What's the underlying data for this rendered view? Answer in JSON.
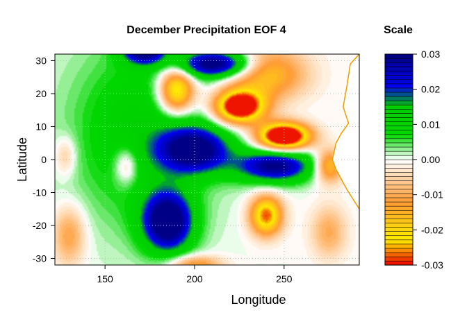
{
  "chart_data": {
    "type": "heatmap",
    "title": "December Precipitation EOF 4",
    "xlabel": "Longitude",
    "ylabel": "Latitude",
    "xlim": [
      122,
      292
    ],
    "ylim": [
      -32,
      32
    ],
    "x_ticks": [
      150,
      200,
      250
    ],
    "y_ticks": [
      30,
      20,
      10,
      0,
      -10,
      -20,
      -30
    ],
    "grid": true,
    "grid_style": "dotted",
    "land_mask_color": "#ffffff",
    "coastline_color": "#e8a000",
    "field_features": [
      {
        "lon": 200,
        "lat": 3,
        "sx": 20,
        "sy": 7,
        "value": 0.03
      },
      {
        "lon": 245,
        "lat": -2,
        "sx": 22,
        "sy": 5,
        "value": 0.03
      },
      {
        "lon": 185,
        "lat": -19,
        "sx": 14,
        "sy": 9,
        "value": 0.035
      },
      {
        "lon": 212,
        "lat": 29,
        "sx": 20,
        "sy": 4,
        "value": 0.032
      },
      {
        "lon": 172,
        "lat": 33,
        "sx": 12,
        "sy": 4,
        "value": 0.03
      },
      {
        "lon": 170,
        "lat": 8,
        "sx": 40,
        "sy": 28,
        "value": 0.012
      },
      {
        "lon": 190,
        "lat": 21,
        "sx": 10,
        "sy": 7,
        "value": -0.03
      },
      {
        "lon": 240,
        "lat": -17,
        "sx": 9,
        "sy": 6,
        "value": -0.028
      },
      {
        "lon": 225,
        "lat": 16,
        "sx": 14,
        "sy": 5,
        "value": -0.04
      },
      {
        "lon": 250,
        "lat": 7,
        "sx": 14,
        "sy": 4,
        "value": -0.045
      },
      {
        "lon": 275,
        "lat": -2,
        "sx": 8,
        "sy": 5,
        "value": -0.02
      },
      {
        "lon": 162,
        "lat": -2,
        "sx": 7,
        "sy": 6,
        "value": -0.012
      },
      {
        "lon": 130,
        "lat": -23,
        "sx": 9,
        "sy": 9,
        "value": -0.012
      },
      {
        "lon": 128,
        "lat": 1,
        "sx": 6,
        "sy": 6,
        "value": -0.008
      },
      {
        "lon": 275,
        "lat": -22,
        "sx": 10,
        "sy": 8,
        "value": -0.01
      },
      {
        "lon": 240,
        "lat": 26,
        "sx": 22,
        "sy": 8,
        "value": -0.018
      },
      {
        "lon": 200,
        "lat": -32,
        "sx": 15,
        "sy": 3,
        "value": -0.015
      }
    ]
  },
  "legend": {
    "title": "Scale",
    "min": -0.03,
    "max": 0.03,
    "levels": 50,
    "ticks": [
      "0.03",
      "0.02",
      "0.01",
      "0.00",
      "-0.01",
      "-0.02",
      "-0.03"
    ],
    "colors": [
      "#ee0000",
      "#ffee00",
      "#ff9a33",
      "#ffffff",
      "#00d800",
      "#00cc00",
      "#0000ee",
      "#000080"
    ]
  }
}
